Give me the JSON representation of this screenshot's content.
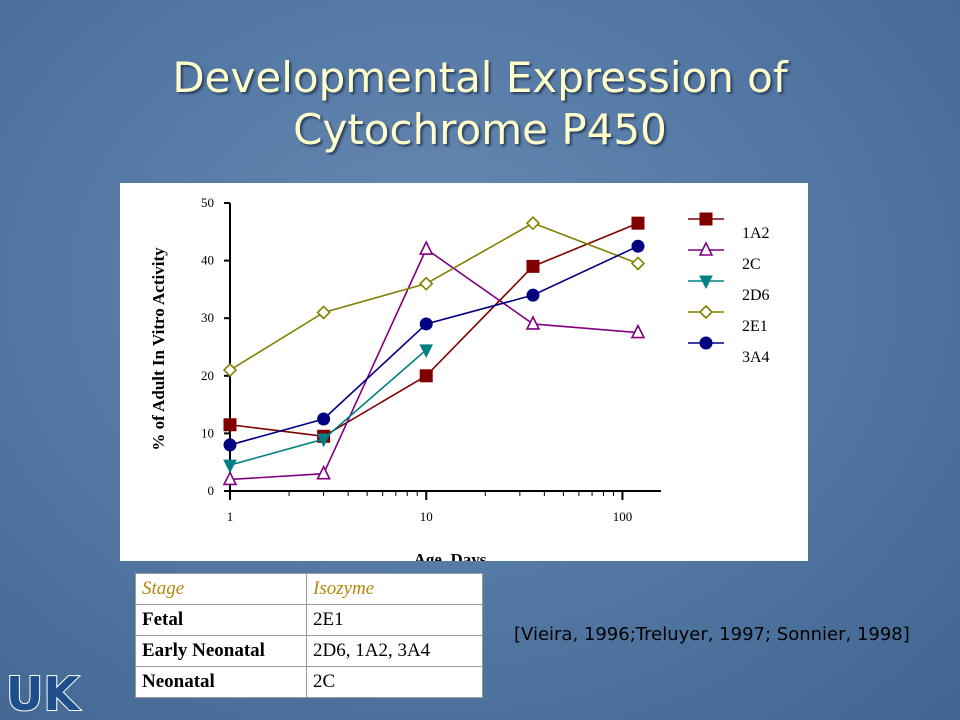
{
  "slide": {
    "title_line1": "Developmental Expression of",
    "title_line2": "Cytochrome P450",
    "title_color": "#ffffcc",
    "citation": "[Vieira, 1996;Treluyer, 1997; Sonnier, 1998]",
    "logo_text": "UK"
  },
  "chart_data": {
    "type": "line",
    "title": "",
    "xlabel": "Age, Days",
    "ylabel": "% of Adult In Vitro Activity",
    "xscale": "log",
    "xlim": [
      1,
      150
    ],
    "ylim": [
      0,
      50
    ],
    "xticks": [
      1,
      10,
      100
    ],
    "yticks": [
      0,
      10,
      20,
      30,
      40,
      50
    ],
    "grid": false,
    "legend_position": "right",
    "series": [
      {
        "name": "1A2",
        "marker": "square-filled",
        "color": "#800000",
        "x": [
          1,
          3,
          10,
          35,
          120
        ],
        "y": [
          11.5,
          9.5,
          20,
          39,
          46.5
        ]
      },
      {
        "name": "2C",
        "marker": "triangle-open",
        "color": "#800080",
        "x": [
          1,
          3,
          10,
          35,
          120
        ],
        "y": [
          2,
          3,
          42,
          29,
          27.5
        ]
      },
      {
        "name": "2D6",
        "marker": "triangle-down-filled",
        "color": "#008080",
        "x": [
          1,
          3,
          10
        ],
        "y": [
          4.5,
          9,
          24.5
        ]
      },
      {
        "name": "2E1",
        "marker": "diamond-open",
        "color": "#808000",
        "x": [
          1,
          3,
          10,
          35,
          120
        ],
        "y": [
          21,
          31,
          36,
          46.5,
          39.5
        ]
      },
      {
        "name": "3A4",
        "marker": "circle-filled",
        "color": "#000080",
        "x": [
          1,
          3,
          10,
          35,
          120
        ],
        "y": [
          8,
          12.5,
          29,
          34,
          42.5
        ]
      }
    ]
  },
  "stage_table": {
    "header": {
      "stage": "Stage",
      "isozyme": "Isozyme"
    },
    "rows": [
      {
        "stage": "Fetal",
        "isozyme": "2E1"
      },
      {
        "stage": "Early Neonatal",
        "isozyme": "2D6, 1A2, 3A4"
      },
      {
        "stage": "Neonatal",
        "isozyme": "2C"
      }
    ]
  }
}
